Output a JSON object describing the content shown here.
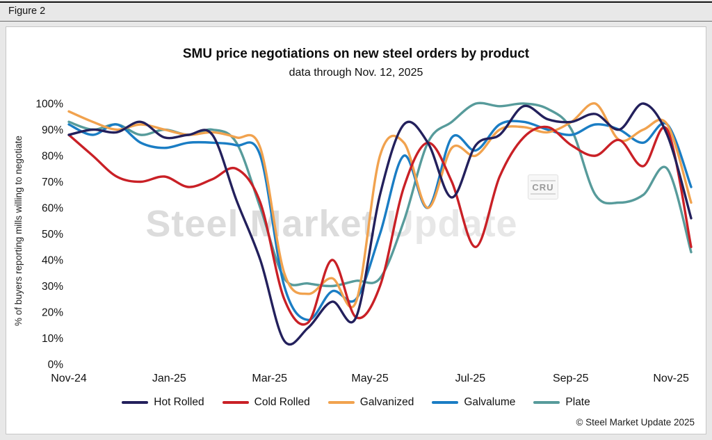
{
  "figure": {
    "label": "Figure 2"
  },
  "header": {
    "title": "SMU price negotiations on new steel orders by product",
    "subtitle": "data through Nov. 12, 2025"
  },
  "watermark": {
    "part1": "Steel Market",
    "part2": " Update",
    "cru": "CRU"
  },
  "footer": {
    "copyright": "© Steel Market Update 2025"
  },
  "chart_data": {
    "type": "line",
    "title": "SMU price negotiations on new steel orders by product",
    "subtitle": "data through Nov. 12, 2025",
    "ylabel": "% of buyers reporting mills willing to negotiate",
    "xlabel": "",
    "ylim": [
      0,
      100
    ],
    "y_ticks": [
      0,
      10,
      20,
      30,
      40,
      50,
      60,
      70,
      80,
      90,
      100
    ],
    "y_tick_suffix": "%",
    "x_range": [
      0,
      12.4
    ],
    "x_unit": "months after Nov-2024; each series has 27 evenly spaced (approx. biweekly) survey points",
    "x_ticks": [
      {
        "m": 0,
        "label": "Nov-24"
      },
      {
        "m": 2,
        "label": "Jan-25"
      },
      {
        "m": 4,
        "label": "Mar-25"
      },
      {
        "m": 6,
        "label": "May-25"
      },
      {
        "m": 8,
        "label": "Jul-25"
      },
      {
        "m": 10,
        "label": "Sep-25"
      },
      {
        "m": 12,
        "label": "Nov-25"
      }
    ],
    "grid": false,
    "legend_position": "bottom",
    "series": [
      {
        "name": "Hot Rolled",
        "color": "#23205C",
        "values": [
          88,
          90,
          89,
          93,
          87,
          88,
          88,
          63,
          40,
          9,
          14,
          24,
          18,
          65,
          92,
          85,
          64,
          84,
          88,
          99,
          94,
          93,
          96,
          90,
          100,
          88,
          56
        ]
      },
      {
        "name": "Cold Rolled",
        "color": "#C92026",
        "values": [
          88,
          80,
          72,
          70,
          72,
          68,
          71,
          75,
          62,
          25,
          16,
          40,
          18,
          30,
          68,
          85,
          70,
          45,
          72,
          87,
          91,
          84,
          80,
          86,
          76,
          90,
          45
        ]
      },
      {
        "name": "Galvanized",
        "color": "#F1A24E",
        "values": [
          97,
          93,
          90,
          92,
          90,
          88,
          89,
          87,
          83,
          35,
          27,
          33,
          24,
          80,
          85,
          60,
          83,
          80,
          90,
          91,
          89,
          93,
          100,
          86,
          90,
          92,
          62
        ]
      },
      {
        "name": "Galvalume",
        "color": "#1A7DC4",
        "values": [
          92,
          88,
          92,
          85,
          83,
          85,
          85,
          84,
          80,
          30,
          17,
          28,
          25,
          50,
          80,
          60,
          87,
          82,
          92,
          93,
          90,
          88,
          92,
          90,
          85,
          92,
          68
        ]
      },
      {
        "name": "Plate",
        "color": "#579B9B",
        "values": [
          93,
          90,
          92,
          88,
          90,
          88,
          90,
          85,
          60,
          33,
          31,
          30,
          32,
          33,
          55,
          85,
          93,
          100,
          99,
          100,
          98,
          90,
          65,
          62,
          65,
          75,
          43
        ]
      }
    ]
  }
}
